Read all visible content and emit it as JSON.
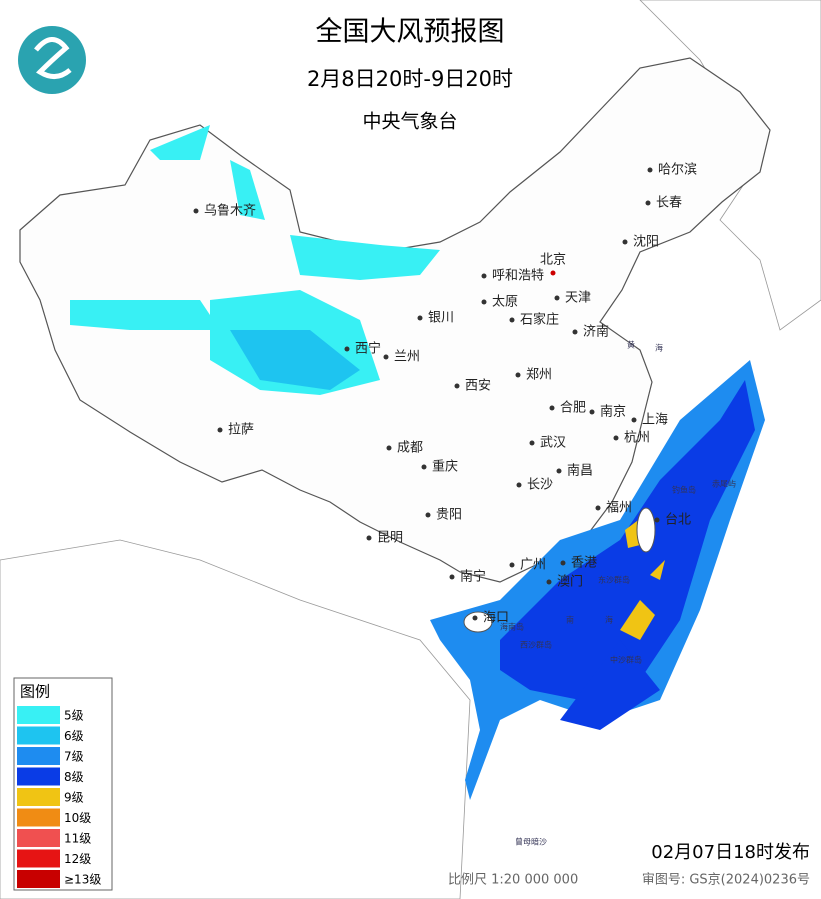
{
  "header": {
    "title": "全国大风预报图",
    "period": "2月8日20时-9日20时",
    "issuer": "中央气象台"
  },
  "cities": [
    "乌鲁木齐",
    "哈尔滨",
    "长春",
    "沈阳",
    "北京",
    "呼和浩特",
    "天津",
    "太原",
    "石家庄",
    "银川",
    "济南",
    "西宁",
    "兰州",
    "郑州",
    "西安",
    "合肥",
    "南京",
    "上海",
    "拉萨",
    "武汉",
    "杭州",
    "成都",
    "重庆",
    "南昌",
    "长沙",
    "福州",
    "台北",
    "贵阳",
    "昆明",
    "广州",
    "香港",
    "澳门",
    "南宁",
    "海口"
  ],
  "sea_labels": [
    "黄",
    "海",
    "南",
    "海",
    "海南岛",
    "西沙群岛",
    "东沙群岛",
    "中沙群岛",
    "钓鱼岛",
    "赤尾屿",
    "曾母暗沙"
  ],
  "legend": {
    "title": "图例",
    "items": [
      {
        "label": "5级",
        "color": "#38f0f4"
      },
      {
        "label": "6级",
        "color": "#1ec4f0"
      },
      {
        "label": "7级",
        "color": "#1e8cf0"
      },
      {
        "label": "8级",
        "color": "#0a3ce6"
      },
      {
        "label": "9级",
        "color": "#f0c414"
      },
      {
        "label": "10级",
        "color": "#f08c14"
      },
      {
        "label": "11级",
        "color": "#f05050"
      },
      {
        "label": "12级",
        "color": "#e61414"
      },
      {
        "label": "≥13级",
        "color": "#c80000"
      }
    ]
  },
  "footer": {
    "issued": "02月07日18时发布",
    "scale": "比例尺  1:20 000 000",
    "map_number": "审图号: GS京(2024)0236号"
  }
}
